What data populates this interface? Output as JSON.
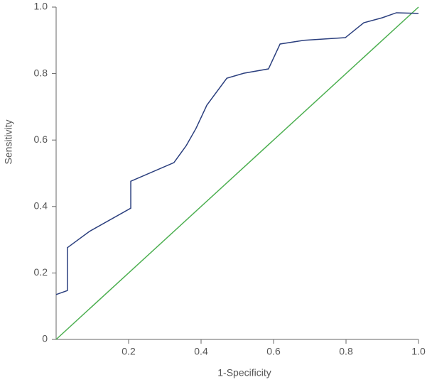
{
  "chart_data": {
    "type": "line",
    "xlabel": "1-Specificity",
    "ylabel": "Sensitivity",
    "xlim": [
      0,
      1
    ],
    "ylim": [
      0,
      1
    ],
    "xticks": [
      0.2,
      0.4,
      0.6,
      0.8,
      {
        "value": 1,
        "label": "1.0"
      }
    ],
    "yticks": [
      0,
      0.2,
      0.4,
      0.6,
      0.8,
      {
        "value": 1,
        "label": "1.0"
      }
    ],
    "grid": false,
    "series": [
      {
        "color": "#2b3f7e",
        "x": [
          0,
          0.031,
          0.031,
          0.092,
          0.206,
          0.206,
          0.325,
          0.359,
          0.386,
          0.416,
          0.471,
          0.518,
          0.586,
          0.618,
          0.684,
          0.798,
          0.849,
          0.9,
          0.939,
          1.0
        ],
        "values": [
          0.135,
          0.147,
          0.276,
          0.325,
          0.395,
          0.476,
          0.532,
          0.583,
          0.635,
          0.705,
          0.786,
          0.801,
          0.814,
          0.889,
          0.9,
          0.908,
          0.953,
          0.968,
          0.983,
          0.981
        ]
      },
      {
        "color": "#4caf50",
        "x": [
          0,
          1
        ],
        "values": [
          0,
          1
        ]
      }
    ]
  }
}
